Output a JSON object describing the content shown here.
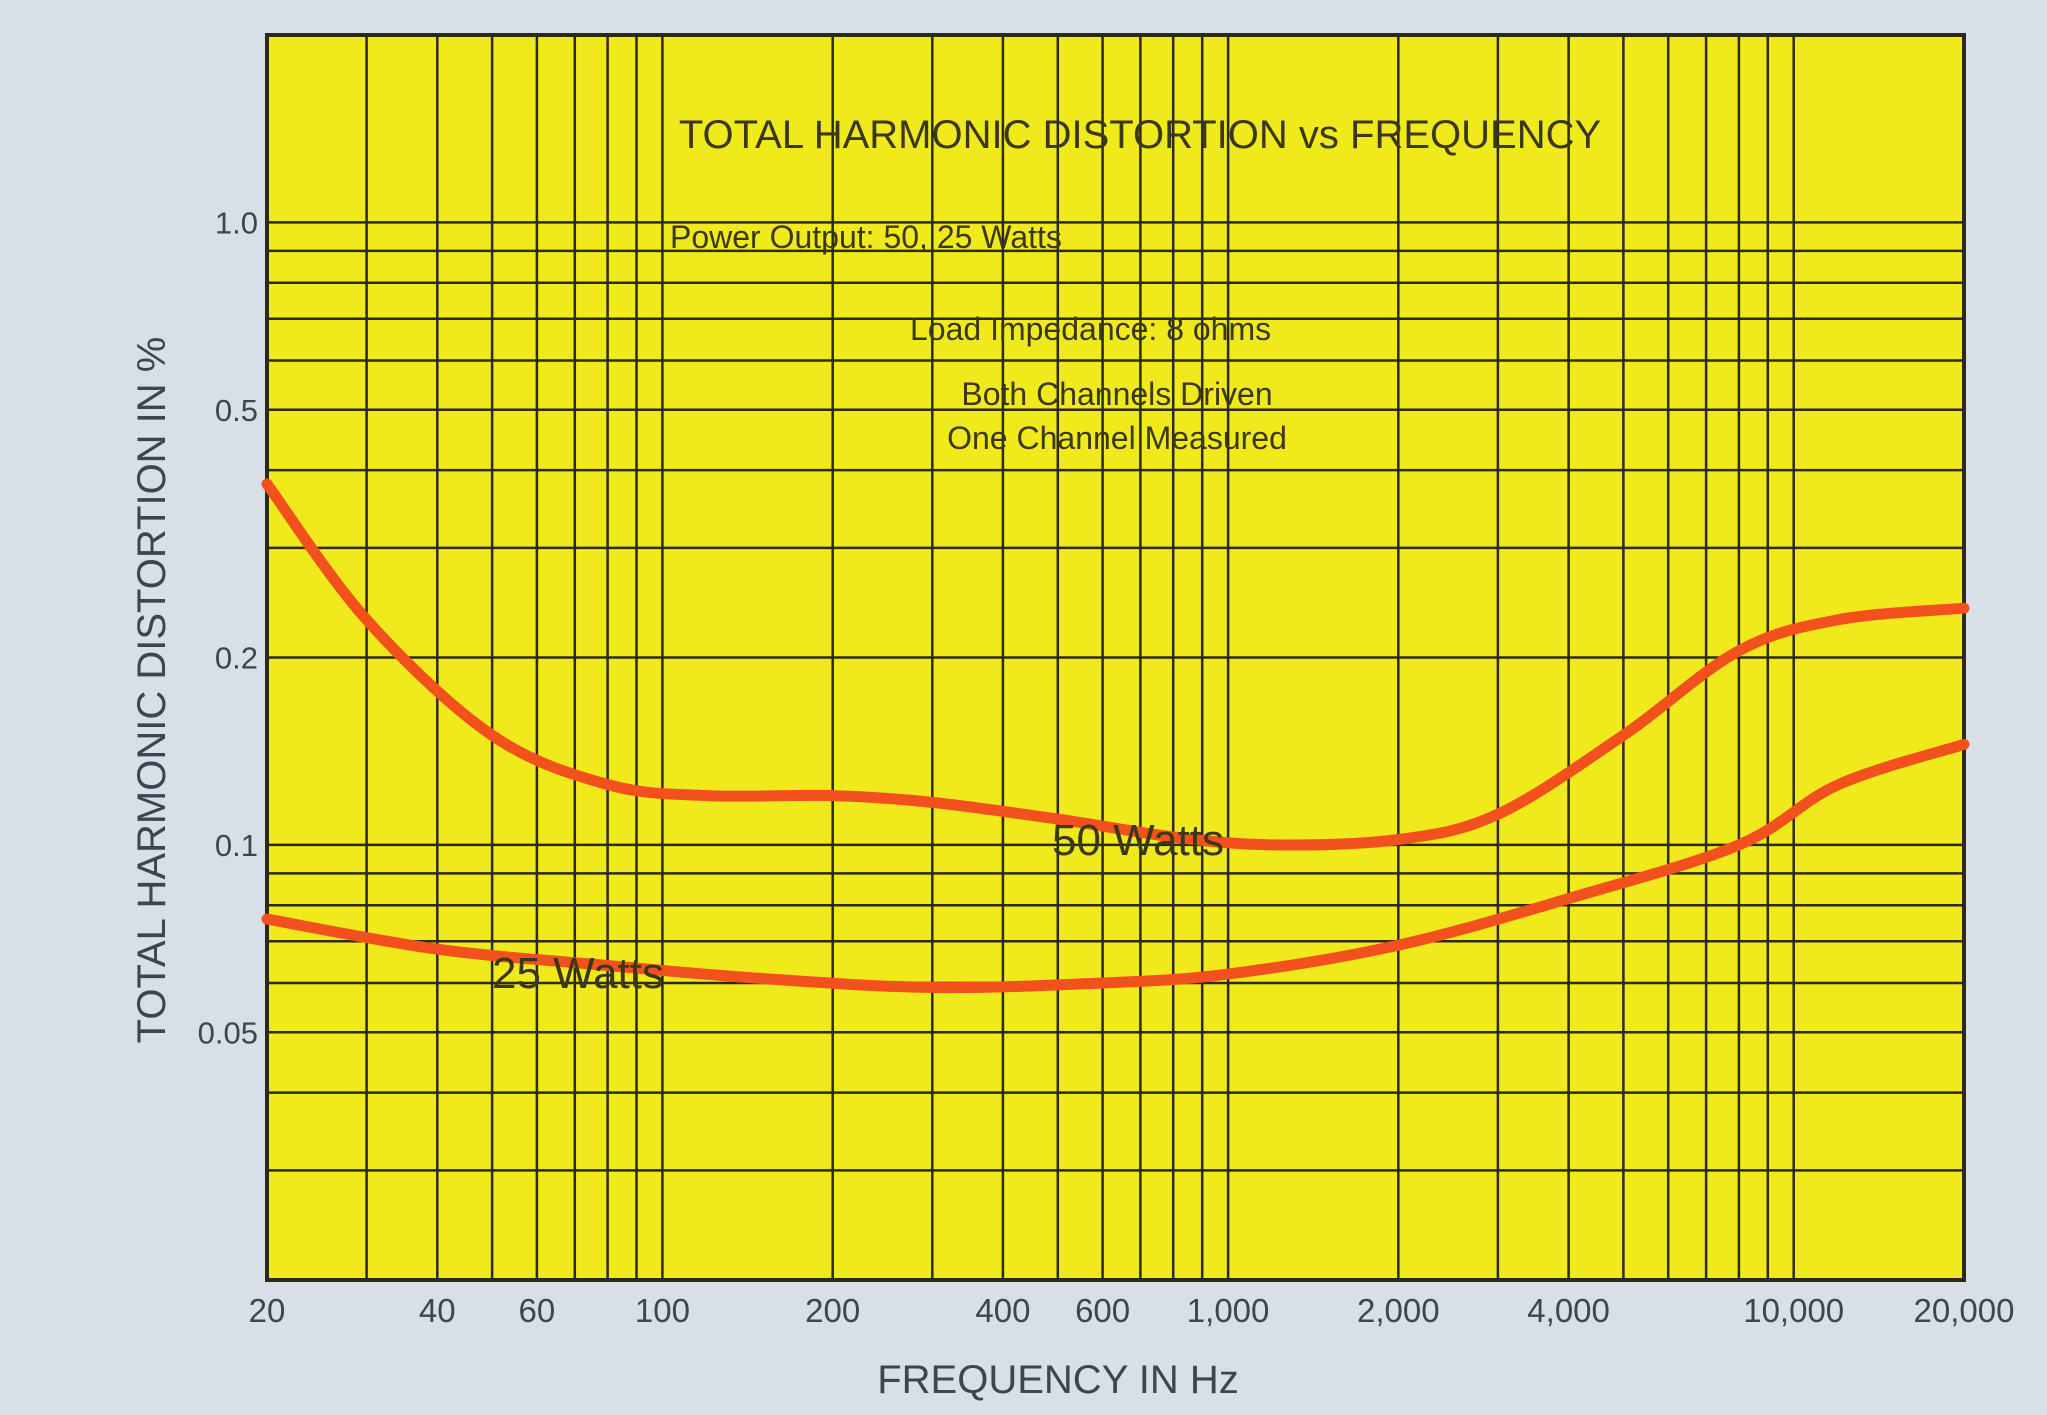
{
  "chart_data": {
    "type": "line",
    "title": "TOTAL HARMONIC DISTORTION vs FREQUENCY",
    "annotations": [
      "Power Output: 50, 25 Watts",
      "Load Impedance: 8 ohms",
      "Both Channels Driven",
      "One Channel Measured"
    ],
    "xlabel": "FREQUENCY IN Hz",
    "ylabel": "TOTAL HARMONIC DISTORTION IN %",
    "x_scale": "log",
    "y_scale": "log",
    "xlim": [
      20,
      20000
    ],
    "ylim": [
      0.02,
      2
    ],
    "x_ticks": [
      20,
      40,
      60,
      100,
      200,
      400,
      600,
      1000,
      2000,
      4000,
      10000,
      20000
    ],
    "x_tick_labels": [
      "20",
      "40",
      "60",
      "100",
      "200",
      "400",
      "600",
      "1,000",
      "2,000",
      "4,000",
      "10,000",
      "20,000"
    ],
    "y_ticks": [
      0.05,
      0.1,
      0.2,
      0.5,
      1.0
    ],
    "y_tick_labels": [
      "0.05",
      "0.1",
      "0.2",
      "0.5",
      "1.0"
    ],
    "grid": true,
    "colors": {
      "plot_background": "#f0ea1c",
      "grid": "#2b2a14",
      "line": "#f2501c",
      "page_background": "#d9dfe6"
    },
    "series": [
      {
        "name": "50 Watts",
        "x": [
          20,
          30,
          50,
          80,
          120,
          200,
          300,
          500,
          800,
          1200,
          2000,
          3000,
          5000,
          8000,
          12000,
          20000
        ],
        "y": [
          0.38,
          0.23,
          0.15,
          0.125,
          0.12,
          0.12,
          0.117,
          0.11,
          0.103,
          0.1,
          0.102,
          0.112,
          0.15,
          0.205,
          0.23,
          0.24
        ]
      },
      {
        "name": "25 Watts",
        "x": [
          20,
          40,
          80,
          150,
          300,
          600,
          1000,
          2000,
          4000,
          8000,
          12000,
          20000
        ],
        "y": [
          0.076,
          0.068,
          0.064,
          0.061,
          0.059,
          0.06,
          0.062,
          0.069,
          0.082,
          0.1,
          0.125,
          0.145
        ]
      }
    ]
  }
}
